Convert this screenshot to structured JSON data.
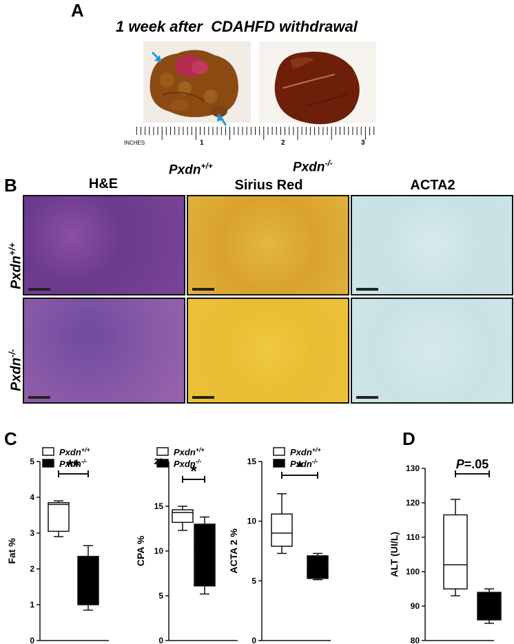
{
  "panel_a": {
    "letter": "A",
    "title": "1 week after  CDAHFD withdrawal",
    "ruler_label": "INCHES",
    "ruler_numbers": [
      "1",
      "2",
      "3"
    ],
    "genotype_left": "Pxdn",
    "genotype_left_sup": "+/+",
    "genotype_right": "Pxdn",
    "genotype_right_sup": "-/-"
  },
  "panel_b": {
    "letter": "B",
    "columns": [
      "H&E",
      "Sirius Red",
      "ACTA2"
    ],
    "row1_label": "Pxdn",
    "row1_sup": "+/+",
    "row2_label": "Pxdn",
    "row2_sup": "-/-"
  },
  "panel_c": {
    "letter": "C"
  },
  "panel_d": {
    "letter": "D"
  },
  "legend": {
    "wt_name": "Pxdn",
    "wt_sup": "+/+",
    "ko_name": "Pxdn",
    "ko_sup": "-/-"
  },
  "chart_data": [
    {
      "type": "box",
      "ylabel": "Fat %",
      "ylim": [
        0,
        5
      ],
      "yticks": [
        0,
        1,
        2,
        3,
        4,
        5
      ],
      "significance": "**",
      "series": [
        {
          "name": "Pxdn+/+",
          "min": 2.9,
          "q1": 3.05,
          "median": 3.8,
          "q3": 3.85,
          "max": 3.9,
          "fill": "#ffffff"
        },
        {
          "name": "Pxdn-/-",
          "min": 0.85,
          "q1": 1.0,
          "median": 2.0,
          "q3": 2.35,
          "max": 2.65,
          "fill": "#000000"
        }
      ]
    },
    {
      "type": "box",
      "ylabel": "CPA %",
      "ylim": [
        0,
        20
      ],
      "yticks": [
        0,
        5,
        10,
        15,
        20
      ],
      "significance": "*",
      "series": [
        {
          "name": "Pxdn+/+",
          "min": 12.3,
          "q1": 13.2,
          "median": 14.3,
          "q3": 14.6,
          "max": 15.0,
          "fill": "#ffffff"
        },
        {
          "name": "Pxdn-/-",
          "min": 5.2,
          "q1": 6.1,
          "median": 10.0,
          "q3": 13.0,
          "max": 13.8,
          "fill": "#000000"
        }
      ]
    },
    {
      "type": "box",
      "ylabel": "ACTA 2 %",
      "ylim": [
        0,
        15
      ],
      "yticks": [
        0,
        5,
        10,
        15
      ],
      "significance": "*",
      "series": [
        {
          "name": "Pxdn+/+",
          "min": 7.3,
          "q1": 7.9,
          "median": 9.0,
          "q3": 10.6,
          "max": 12.3,
          "fill": "#ffffff"
        },
        {
          "name": "Pxdn-/-",
          "min": 5.1,
          "q1": 5.2,
          "median": 6.0,
          "q3": 7.1,
          "max": 7.3,
          "fill": "#000000"
        }
      ]
    },
    {
      "type": "box",
      "ylabel": "ALT (UI/L)",
      "ylim": [
        80,
        130
      ],
      "yticks": [
        80,
        90,
        100,
        110,
        120,
        130
      ],
      "significance": "P=.05",
      "series": [
        {
          "name": "Pxdn+/+",
          "min": 93,
          "q1": 95,
          "median": 102,
          "q3": 116.5,
          "max": 121,
          "fill": "#ffffff"
        },
        {
          "name": "Pxdn-/-",
          "min": 85,
          "q1": 86,
          "median": 90,
          "q3": 94,
          "max": 95,
          "fill": "#000000"
        }
      ]
    }
  ]
}
